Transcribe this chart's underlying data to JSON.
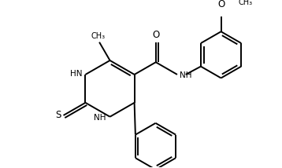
{
  "background": "#ffffff",
  "line_color": "#000000",
  "line_width": 1.4,
  "font_size": 7.5,
  "figsize": [
    3.58,
    2.14
  ],
  "dpi": 100,
  "xlim": [
    0.0,
    3.58
  ],
  "ylim": [
    0.0,
    2.14
  ]
}
